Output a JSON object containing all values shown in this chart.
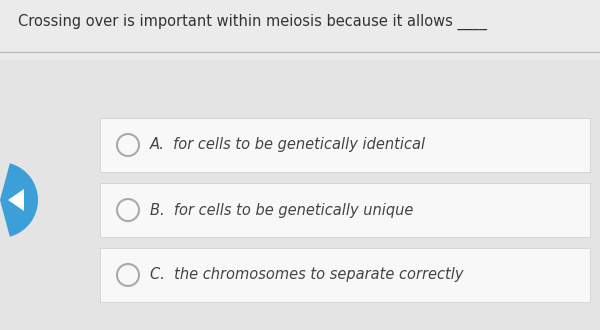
{
  "question": "Crossing over is important within meiosis because it allows ____",
  "options": [
    {
      "label": "A.",
      "text": "  for cells to be genetically identical"
    },
    {
      "label": "B.",
      "text": "  for cells to be genetically unique"
    },
    {
      "label": "C.",
      "text": "  the chromosomes to separate correctly"
    }
  ],
  "bg_top_color": "#ebebeb",
  "bg_card_color": "#e4e4e4",
  "option_bg": "#f8f8f8",
  "option_border": "#cccccc",
  "question_color": "#333333",
  "option_text_color": "#444444",
  "circle_color": "#aaaaaa",
  "arrow_bg": "#3d9fd8",
  "arrow_color": "#ffffff",
  "divider_color": "#bbbbbb",
  "question_fontsize": 10.5,
  "option_fontsize": 10.5
}
